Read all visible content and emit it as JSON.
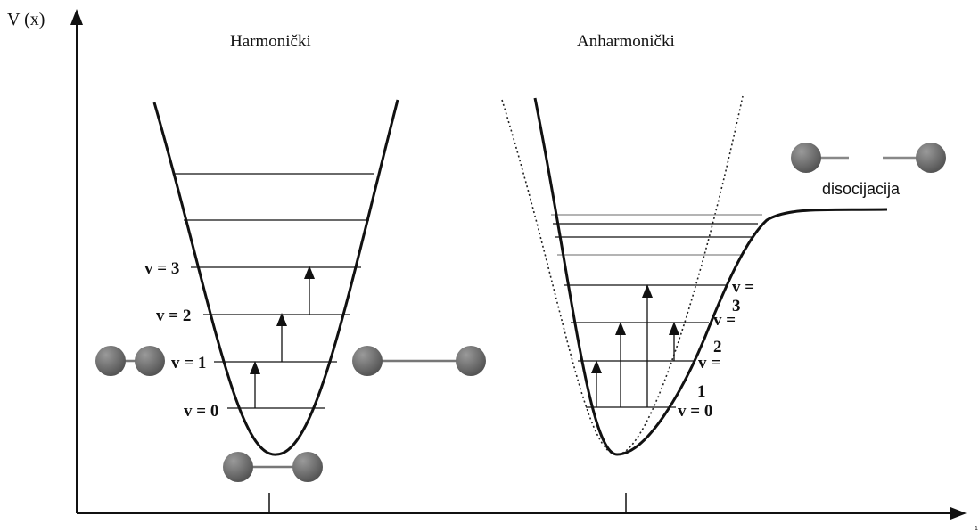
{
  "axis": {
    "y_label": "V (x)"
  },
  "panels": {
    "harmonic": {
      "title": "Harmonički",
      "levels": [
        "v = 3",
        "v = 2",
        "v = 1",
        "v = 0"
      ]
    },
    "anharmonic": {
      "title": "Anharmonički",
      "levels": [
        "v = 0",
        "1",
        "v =",
        "2",
        "v =",
        "3",
        "v ="
      ],
      "dissociation_label": "disocijacija"
    }
  },
  "colors": {
    "line": "#111111",
    "atom": "#6e6e6e",
    "guide": "#999999"
  },
  "corner_mark": "1"
}
